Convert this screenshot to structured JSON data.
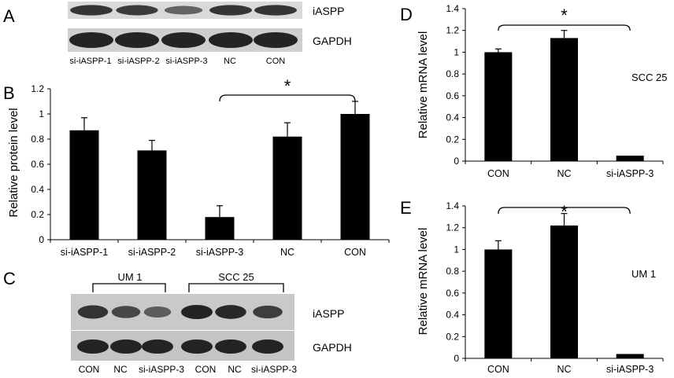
{
  "panels": {
    "A": {
      "letter": "A",
      "bands": [
        "iASPP",
        "GAPDH"
      ],
      "lanes": [
        "si-iASPP-1",
        "si-iASPP-2",
        "si-iASPP-3",
        "NC",
        "CON"
      ],
      "band_intensity": {
        "iASPP": [
          0.85,
          0.8,
          0.45,
          0.85,
          0.85
        ],
        "GAPDH": [
          1,
          1,
          1,
          1,
          1
        ]
      }
    },
    "C": {
      "letter": "C",
      "groups": [
        "UM 1",
        "SCC 25"
      ],
      "bands": [
        "iASPP",
        "GAPDH"
      ],
      "lanes": [
        "CON",
        "NC",
        "si-iASPP-3",
        "CON",
        "NC",
        "si-iASPP-3"
      ],
      "band_intensity": {
        "iASPP": [
          0.85,
          0.65,
          0.45,
          1,
          0.95,
          0.75
        ],
        "GAPDH": [
          1,
          1,
          1,
          1,
          1,
          1
        ]
      }
    }
  },
  "chart_data": [
    {
      "panel": "B",
      "type": "bar",
      "ylabel": "Relative protein level",
      "categories": [
        "si-iASPP-1",
        "si-iASPP-2",
        "si-iASPP-3",
        "NC",
        "CON"
      ],
      "values": [
        0.87,
        0.71,
        0.18,
        0.82,
        1.0
      ],
      "errors": [
        0.1,
        0.08,
        0.09,
        0.11,
        0.1
      ],
      "ylim": [
        0,
        1.2
      ],
      "yticks": [
        "0",
        "0.2",
        "0.4",
        "0.6",
        "0.8",
        "1",
        "1.2"
      ],
      "significance": {
        "from": 2,
        "to": 4,
        "label": "*"
      },
      "bar_color": "#000000"
    },
    {
      "panel": "D",
      "type": "bar",
      "ylabel": "Relative mRNA level",
      "annotation": "SCC 25",
      "categories": [
        "CON",
        "NC",
        "si-iASPP-3"
      ],
      "values": [
        1.0,
        1.13,
        0.05
      ],
      "errors": [
        0.03,
        0.07,
        0.0
      ],
      "ylim": [
        0,
        1.4
      ],
      "yticks": [
        "0",
        "0.2",
        "0.4",
        "0.6",
        "0.8",
        "1",
        "1.2",
        "1.4"
      ],
      "significance": {
        "from": 0,
        "to": 2,
        "label": "*"
      },
      "bar_color": "#000000"
    },
    {
      "panel": "E",
      "type": "bar",
      "ylabel": "Relative mRNA level",
      "annotation": "UM 1",
      "categories": [
        "CON",
        "NC",
        "si-iASPP-3"
      ],
      "values": [
        1.0,
        1.22,
        0.04
      ],
      "errors": [
        0.08,
        0.11,
        0.0
      ],
      "ylim": [
        0,
        1.4
      ],
      "yticks": [
        "0",
        "0.2",
        "0.4",
        "0.6",
        "0.8",
        "1",
        "1.2",
        "1.4"
      ],
      "significance": {
        "from": 0,
        "to": 2,
        "label": "*"
      },
      "bar_color": "#000000"
    }
  ]
}
